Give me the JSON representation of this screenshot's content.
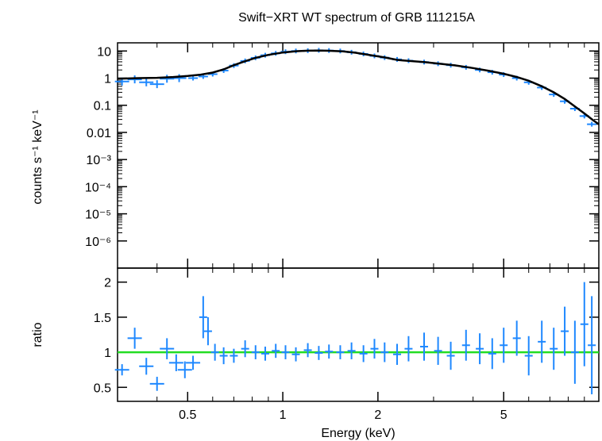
{
  "colors": {
    "data": "#1e88ff",
    "model": "#000000",
    "reference_line": "#22dd22",
    "axes": "#000000",
    "background": "#ffffff"
  },
  "chart_data": [
    {
      "type": "scatter",
      "panel": "top",
      "title": "Swift−XRT WT spectrum of GRB 111215A",
      "xlabel": "",
      "ylabel": "counts s⁻¹ keV⁻¹",
      "xscale": "log",
      "yscale": "log",
      "xlim": [
        0.3,
        10
      ],
      "ylim": [
        1e-07,
        20
      ],
      "yticks": [
        {
          "value": 10,
          "label": "10"
        },
        {
          "value": 1,
          "label": "1"
        },
        {
          "value": 0.1,
          "label": "0.1"
        },
        {
          "value": 0.01,
          "label": "0.01"
        },
        {
          "value": 0.001,
          "label": "10⁻³"
        },
        {
          "value": 0.0001,
          "label": "10⁻⁴"
        },
        {
          "value": 1e-05,
          "label": "10⁻⁵"
        },
        {
          "value": 1e-06,
          "label": "10⁻⁶"
        }
      ],
      "grid": false,
      "series": [
        {
          "style": "crosses",
          "x": [
            0.31,
            0.34,
            0.37,
            0.4,
            0.43,
            0.47,
            0.52,
            0.56,
            0.6,
            0.65,
            0.7,
            0.76,
            0.82,
            0.88,
            0.95,
            1.02,
            1.1,
            1.2,
            1.3,
            1.4,
            1.52,
            1.65,
            1.8,
            1.95,
            2.1,
            2.3,
            2.5,
            2.8,
            3.1,
            3.4,
            3.8,
            4.2,
            4.6,
            5.0,
            5.5,
            6.0,
            6.6,
            7.2,
            7.8,
            8.4,
            9.0,
            9.5
          ],
          "y": [
            0.75,
            0.9,
            0.7,
            0.6,
            0.95,
            1.0,
            1.0,
            1.15,
            1.4,
            1.9,
            2.9,
            4.3,
            5.6,
            7.0,
            8.2,
            9.4,
            10.0,
            10.3,
            10.6,
            10.4,
            10.0,
            9.0,
            7.8,
            6.6,
            5.7,
            4.9,
            4.4,
            3.9,
            3.4,
            3.0,
            2.5,
            2.0,
            1.65,
            1.35,
            1.0,
            0.7,
            0.45,
            0.25,
            0.14,
            0.075,
            0.04,
            0.02
          ]
        },
        {
          "style": "line",
          "x": [
            0.3,
            0.35,
            0.4,
            0.45,
            0.5,
            0.55,
            0.6,
            0.65,
            0.7,
            0.76,
            0.82,
            0.9,
            1.0,
            1.1,
            1.2,
            1.3,
            1.4,
            1.55,
            1.7,
            1.9,
            2.1,
            2.3,
            2.5,
            2.8,
            3.1,
            3.5,
            4.0,
            4.5,
            5.0,
            5.5,
            6.0,
            6.6,
            7.2,
            7.8,
            8.4,
            9.0,
            9.6,
            10.0
          ],
          "y": [
            0.95,
            1.0,
            1.03,
            1.1,
            1.2,
            1.35,
            1.6,
            2.1,
            3.0,
            4.2,
            5.6,
            7.2,
            8.8,
            9.8,
            10.3,
            10.4,
            10.2,
            9.7,
            8.6,
            7.0,
            5.8,
            4.7,
            4.3,
            3.9,
            3.45,
            2.95,
            2.35,
            1.85,
            1.45,
            1.1,
            0.8,
            0.5,
            0.3,
            0.17,
            0.09,
            0.05,
            0.028,
            0.02
          ]
        }
      ]
    },
    {
      "type": "scatter",
      "panel": "bottom",
      "xlabel": "Energy (keV)",
      "ylabel": "ratio",
      "xscale": "log",
      "yscale": "linear",
      "xlim": [
        0.3,
        10
      ],
      "ylim": [
        0.3,
        2.2
      ],
      "xticks": [
        {
          "value": 0.5,
          "label": "0.5"
        },
        {
          "value": 1,
          "label": "1"
        },
        {
          "value": 2,
          "label": "2"
        },
        {
          "value": 5,
          "label": "5"
        }
      ],
      "yticks": [
        {
          "value": 0.5,
          "label": "0.5"
        },
        {
          "value": 1,
          "label": "1"
        },
        {
          "value": 1.5,
          "label": "1.5"
        },
        {
          "value": 2,
          "label": "2"
        }
      ],
      "grid": false,
      "reference_line": 1,
      "series": [
        {
          "style": "crosses",
          "x": [
            0.31,
            0.34,
            0.37,
            0.4,
            0.43,
            0.46,
            0.49,
            0.52,
            0.56,
            0.58,
            0.61,
            0.65,
            0.7,
            0.76,
            0.82,
            0.88,
            0.95,
            1.02,
            1.1,
            1.2,
            1.3,
            1.4,
            1.52,
            1.65,
            1.8,
            1.95,
            2.1,
            2.3,
            2.5,
            2.8,
            3.1,
            3.4,
            3.8,
            4.2,
            4.6,
            5.0,
            5.5,
            6.0,
            6.6,
            7.2,
            7.8,
            8.4,
            9.0,
            9.5
          ],
          "y": [
            0.75,
            1.2,
            0.8,
            0.55,
            1.05,
            0.85,
            0.75,
            0.85,
            1.5,
            1.3,
            1.0,
            0.95,
            0.95,
            1.05,
            1.0,
            0.98,
            1.02,
            1.0,
            0.97,
            1.03,
            0.99,
            1.01,
            1.0,
            1.02,
            0.98,
            1.05,
            1.0,
            0.97,
            1.05,
            1.08,
            1.02,
            0.95,
            1.1,
            1.05,
            0.98,
            1.1,
            1.2,
            0.95,
            1.15,
            1.05,
            1.3,
            1.0,
            1.4,
            1.1
          ],
          "yerr": [
            0.08,
            0.15,
            0.12,
            0.1,
            0.15,
            0.12,
            0.12,
            0.1,
            0.3,
            0.2,
            0.12,
            0.12,
            0.1,
            0.12,
            0.1,
            0.1,
            0.1,
            0.1,
            0.1,
            0.1,
            0.1,
            0.1,
            0.1,
            0.12,
            0.12,
            0.14,
            0.14,
            0.15,
            0.18,
            0.2,
            0.2,
            0.2,
            0.22,
            0.22,
            0.22,
            0.25,
            0.25,
            0.28,
            0.3,
            0.3,
            0.35,
            0.45,
            0.6,
            0.7
          ]
        }
      ]
    }
  ]
}
